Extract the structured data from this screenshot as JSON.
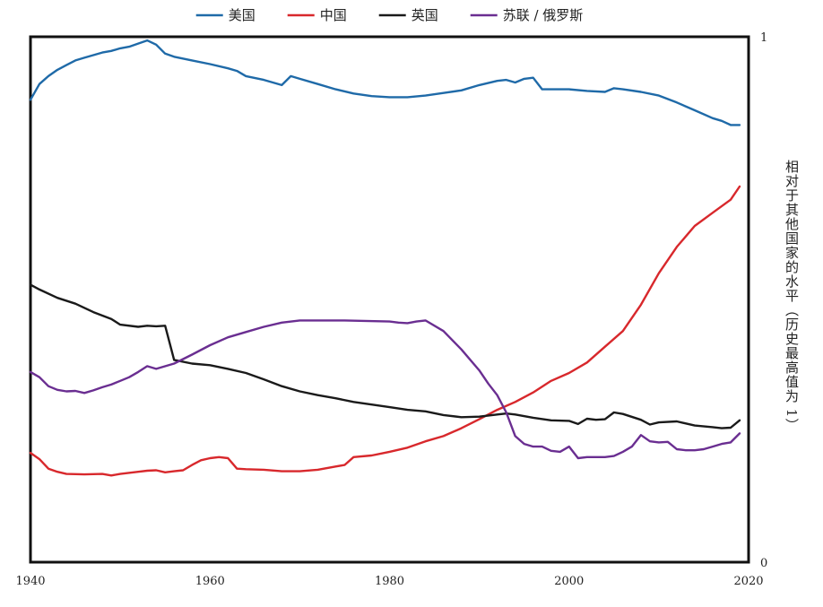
{
  "chart_data": {
    "type": "line",
    "title": "",
    "xlabel": "",
    "ylabel": "相对于其他国家的水平（历史最高值为 1）",
    "xlim": [
      1940,
      2020
    ],
    "ylim": [
      0,
      1
    ],
    "x_ticks": [
      1940,
      1960,
      1980,
      2000,
      2020
    ],
    "y_ticks": [
      0,
      1
    ],
    "legend_position": "top",
    "grid": false,
    "series": [
      {
        "name": "美国",
        "color": "#1f6aa8",
        "points": [
          [
            1940,
            0.88
          ],
          [
            1941,
            0.91
          ],
          [
            1942,
            0.925
          ],
          [
            1943,
            0.937
          ],
          [
            1944,
            0.946
          ],
          [
            1945,
            0.955
          ],
          [
            1946,
            0.96
          ],
          [
            1947,
            0.965
          ],
          [
            1948,
            0.97
          ],
          [
            1949,
            0.973
          ],
          [
            1950,
            0.978
          ],
          [
            1951,
            0.981
          ],
          [
            1952,
            0.987
          ],
          [
            1953,
            0.993
          ],
          [
            1954,
            0.985
          ],
          [
            1955,
            0.968
          ],
          [
            1956,
            0.962
          ],
          [
            1958,
            0.955
          ],
          [
            1960,
            0.948
          ],
          [
            1962,
            0.94
          ],
          [
            1963,
            0.935
          ],
          [
            1964,
            0.925
          ],
          [
            1966,
            0.918
          ],
          [
            1968,
            0.908
          ],
          [
            1969,
            0.925
          ],
          [
            1970,
            0.92
          ],
          [
            1972,
            0.91
          ],
          [
            1974,
            0.9
          ],
          [
            1976,
            0.892
          ],
          [
            1978,
            0.887
          ],
          [
            1980,
            0.885
          ],
          [
            1982,
            0.885
          ],
          [
            1984,
            0.888
          ],
          [
            1986,
            0.893
          ],
          [
            1988,
            0.898
          ],
          [
            1990,
            0.908
          ],
          [
            1992,
            0.916
          ],
          [
            1993,
            0.918
          ],
          [
            1994,
            0.913
          ],
          [
            1995,
            0.92
          ],
          [
            1996,
            0.922
          ],
          [
            1997,
            0.9
          ],
          [
            1998,
            0.9
          ],
          [
            2000,
            0.9
          ],
          [
            2002,
            0.897
          ],
          [
            2004,
            0.895
          ],
          [
            2005,
            0.902
          ],
          [
            2006,
            0.9
          ],
          [
            2008,
            0.895
          ],
          [
            2010,
            0.888
          ],
          [
            2012,
            0.875
          ],
          [
            2014,
            0.86
          ],
          [
            2016,
            0.845
          ],
          [
            2017,
            0.84
          ],
          [
            2018,
            0.832
          ],
          [
            2019,
            0.832
          ]
        ]
      },
      {
        "name": "中国",
        "color": "#d8282c",
        "points": [
          [
            1940,
            0.208
          ],
          [
            1941,
            0.196
          ],
          [
            1942,
            0.178
          ],
          [
            1943,
            0.172
          ],
          [
            1944,
            0.168
          ],
          [
            1946,
            0.167
          ],
          [
            1948,
            0.168
          ],
          [
            1949,
            0.165
          ],
          [
            1950,
            0.168
          ],
          [
            1952,
            0.172
          ],
          [
            1953,
            0.174
          ],
          [
            1954,
            0.175
          ],
          [
            1955,
            0.171
          ],
          [
            1956,
            0.173
          ],
          [
            1957,
            0.175
          ],
          [
            1958,
            0.185
          ],
          [
            1959,
            0.194
          ],
          [
            1960,
            0.198
          ],
          [
            1961,
            0.2
          ],
          [
            1962,
            0.198
          ],
          [
            1963,
            0.178
          ],
          [
            1964,
            0.177
          ],
          [
            1966,
            0.176
          ],
          [
            1968,
            0.173
          ],
          [
            1970,
            0.173
          ],
          [
            1972,
            0.176
          ],
          [
            1974,
            0.182
          ],
          [
            1975,
            0.185
          ],
          [
            1976,
            0.2
          ],
          [
            1978,
            0.203
          ],
          [
            1980,
            0.21
          ],
          [
            1982,
            0.218
          ],
          [
            1984,
            0.23
          ],
          [
            1986,
            0.24
          ],
          [
            1988,
            0.255
          ],
          [
            1990,
            0.272
          ],
          [
            1992,
            0.29
          ],
          [
            1994,
            0.305
          ],
          [
            1996,
            0.323
          ],
          [
            1998,
            0.345
          ],
          [
            2000,
            0.36
          ],
          [
            2002,
            0.38
          ],
          [
            2004,
            0.41
          ],
          [
            2006,
            0.44
          ],
          [
            2008,
            0.49
          ],
          [
            2010,
            0.55
          ],
          [
            2012,
            0.6
          ],
          [
            2014,
            0.64
          ],
          [
            2016,
            0.665
          ],
          [
            2018,
            0.69
          ],
          [
            2019,
            0.715
          ]
        ]
      },
      {
        "name": "英国",
        "color": "#1a1a1a",
        "points": [
          [
            1940,
            0.528
          ],
          [
            1941,
            0.519
          ],
          [
            1943,
            0.503
          ],
          [
            1945,
            0.492
          ],
          [
            1947,
            0.476
          ],
          [
            1949,
            0.463
          ],
          [
            1950,
            0.452
          ],
          [
            1952,
            0.448
          ],
          [
            1953,
            0.45
          ],
          [
            1954,
            0.449
          ],
          [
            1955,
            0.45
          ],
          [
            1956,
            0.385
          ],
          [
            1958,
            0.378
          ],
          [
            1960,
            0.375
          ],
          [
            1962,
            0.368
          ],
          [
            1964,
            0.36
          ],
          [
            1966,
            0.348
          ],
          [
            1968,
            0.335
          ],
          [
            1970,
            0.325
          ],
          [
            1972,
            0.318
          ],
          [
            1974,
            0.312
          ],
          [
            1976,
            0.305
          ],
          [
            1978,
            0.3
          ],
          [
            1980,
            0.295
          ],
          [
            1982,
            0.29
          ],
          [
            1984,
            0.287
          ],
          [
            1986,
            0.28
          ],
          [
            1988,
            0.276
          ],
          [
            1990,
            0.277
          ],
          [
            1992,
            0.281
          ],
          [
            1993,
            0.283
          ],
          [
            1994,
            0.281
          ],
          [
            1996,
            0.275
          ],
          [
            1998,
            0.27
          ],
          [
            2000,
            0.269
          ],
          [
            2001,
            0.263
          ],
          [
            2002,
            0.273
          ],
          [
            2003,
            0.271
          ],
          [
            2004,
            0.272
          ],
          [
            2005,
            0.285
          ],
          [
            2006,
            0.282
          ],
          [
            2008,
            0.271
          ],
          [
            2009,
            0.262
          ],
          [
            2010,
            0.266
          ],
          [
            2012,
            0.268
          ],
          [
            2014,
            0.26
          ],
          [
            2016,
            0.257
          ],
          [
            2017,
            0.255
          ],
          [
            2018,
            0.256
          ],
          [
            2019,
            0.27
          ]
        ]
      },
      {
        "name": "苏联 / 俄罗斯",
        "color": "#6a2e91",
        "points": [
          [
            1940,
            0.362
          ],
          [
            1941,
            0.352
          ],
          [
            1942,
            0.335
          ],
          [
            1943,
            0.328
          ],
          [
            1944,
            0.325
          ],
          [
            1945,
            0.326
          ],
          [
            1946,
            0.322
          ],
          [
            1947,
            0.327
          ],
          [
            1948,
            0.333
          ],
          [
            1949,
            0.338
          ],
          [
            1950,
            0.345
          ],
          [
            1951,
            0.352
          ],
          [
            1952,
            0.362
          ],
          [
            1953,
            0.373
          ],
          [
            1954,
            0.368
          ],
          [
            1956,
            0.378
          ],
          [
            1958,
            0.395
          ],
          [
            1960,
            0.413
          ],
          [
            1962,
            0.428
          ],
          [
            1964,
            0.438
          ],
          [
            1966,
            0.448
          ],
          [
            1968,
            0.456
          ],
          [
            1970,
            0.46
          ],
          [
            1972,
            0.46
          ],
          [
            1975,
            0.46
          ],
          [
            1980,
            0.458
          ],
          [
            1981,
            0.456
          ],
          [
            1982,
            0.455
          ],
          [
            1983,
            0.458
          ],
          [
            1984,
            0.46
          ],
          [
            1986,
            0.44
          ],
          [
            1988,
            0.405
          ],
          [
            1990,
            0.365
          ],
          [
            1991,
            0.34
          ],
          [
            1992,
            0.318
          ],
          [
            1993,
            0.285
          ],
          [
            1994,
            0.24
          ],
          [
            1995,
            0.225
          ],
          [
            1996,
            0.22
          ],
          [
            1997,
            0.22
          ],
          [
            1998,
            0.212
          ],
          [
            1999,
            0.21
          ],
          [
            2000,
            0.22
          ],
          [
            2001,
            0.198
          ],
          [
            2002,
            0.2
          ],
          [
            2004,
            0.2
          ],
          [
            2005,
            0.202
          ],
          [
            2006,
            0.21
          ],
          [
            2007,
            0.22
          ],
          [
            2008,
            0.242
          ],
          [
            2009,
            0.23
          ],
          [
            2010,
            0.228
          ],
          [
            2011,
            0.229
          ],
          [
            2012,
            0.215
          ],
          [
            2013,
            0.213
          ],
          [
            2014,
            0.213
          ],
          [
            2015,
            0.215
          ],
          [
            2016,
            0.22
          ],
          [
            2017,
            0.225
          ],
          [
            2018,
            0.228
          ],
          [
            2019,
            0.245
          ]
        ]
      }
    ]
  }
}
